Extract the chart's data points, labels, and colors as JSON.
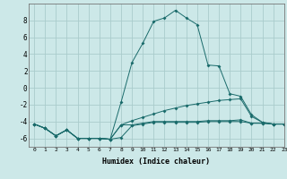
{
  "xlabel": "Humidex (Indice chaleur)",
  "background_color": "#cce8e8",
  "grid_color": "#aacccc",
  "line_color": "#1a6b6b",
  "xlim": [
    -0.5,
    23
  ],
  "ylim": [
    -7.0,
    10.0
  ],
  "yticks": [
    -6,
    -4,
    -2,
    0,
    2,
    4,
    6,
    8
  ],
  "xticks": [
    0,
    1,
    2,
    3,
    4,
    5,
    6,
    7,
    8,
    9,
    10,
    11,
    12,
    13,
    14,
    15,
    16,
    17,
    18,
    19,
    20,
    21,
    22,
    23
  ],
  "line1_x": [
    0,
    1,
    2,
    3,
    4,
    5,
    6,
    7,
    8,
    9,
    10,
    11,
    12,
    13,
    14,
    15,
    16,
    17,
    18,
    19,
    20,
    21,
    22,
    23
  ],
  "line1_y": [
    -4.3,
    -4.8,
    -5.7,
    -5.0,
    -6.0,
    -6.0,
    -6.0,
    -6.1,
    -5.9,
    -4.5,
    -4.3,
    -4.1,
    -4.1,
    -4.1,
    -4.1,
    -4.1,
    -4.0,
    -4.0,
    -4.0,
    -4.0,
    -4.2,
    -4.2,
    -4.3,
    -4.3
  ],
  "line2_x": [
    0,
    1,
    2,
    3,
    4,
    5,
    6,
    7,
    8,
    9,
    10,
    11,
    12,
    13,
    14,
    15,
    16,
    17,
    18,
    19,
    20,
    21,
    22,
    23
  ],
  "line2_y": [
    -4.3,
    -4.8,
    -5.7,
    -5.0,
    -6.0,
    -6.0,
    -6.0,
    -6.1,
    -4.4,
    -3.9,
    -3.5,
    -3.1,
    -2.7,
    -2.4,
    -2.1,
    -1.9,
    -1.7,
    -1.5,
    -1.4,
    -1.3,
    -3.4,
    -4.1,
    -4.3,
    -4.3
  ],
  "line3_x": [
    0,
    1,
    2,
    3,
    4,
    5,
    6,
    7,
    8,
    9,
    10,
    11,
    12,
    13,
    14,
    15,
    16,
    17,
    18,
    19,
    20,
    21,
    22,
    23
  ],
  "line3_y": [
    -4.3,
    -4.8,
    -5.7,
    -5.0,
    -6.0,
    -6.0,
    -6.0,
    -6.1,
    -1.7,
    3.0,
    5.3,
    7.9,
    8.3,
    9.2,
    8.3,
    7.5,
    2.7,
    2.6,
    -0.7,
    -1.0,
    -3.2,
    -4.1,
    -4.3,
    -4.3
  ],
  "line4_x": [
    0,
    1,
    2,
    3,
    4,
    5,
    6,
    7,
    8,
    9,
    10,
    11,
    12,
    13,
    14,
    15,
    16,
    17,
    18,
    19,
    20,
    21,
    22,
    23
  ],
  "line4_y": [
    -4.3,
    -4.8,
    -5.7,
    -5.0,
    -6.0,
    -6.0,
    -6.0,
    -6.1,
    -4.4,
    -4.4,
    -4.2,
    -4.0,
    -4.0,
    -4.0,
    -4.0,
    -4.0,
    -3.9,
    -3.9,
    -3.9,
    -3.8,
    -4.2,
    -4.2,
    -4.3,
    -4.3
  ]
}
